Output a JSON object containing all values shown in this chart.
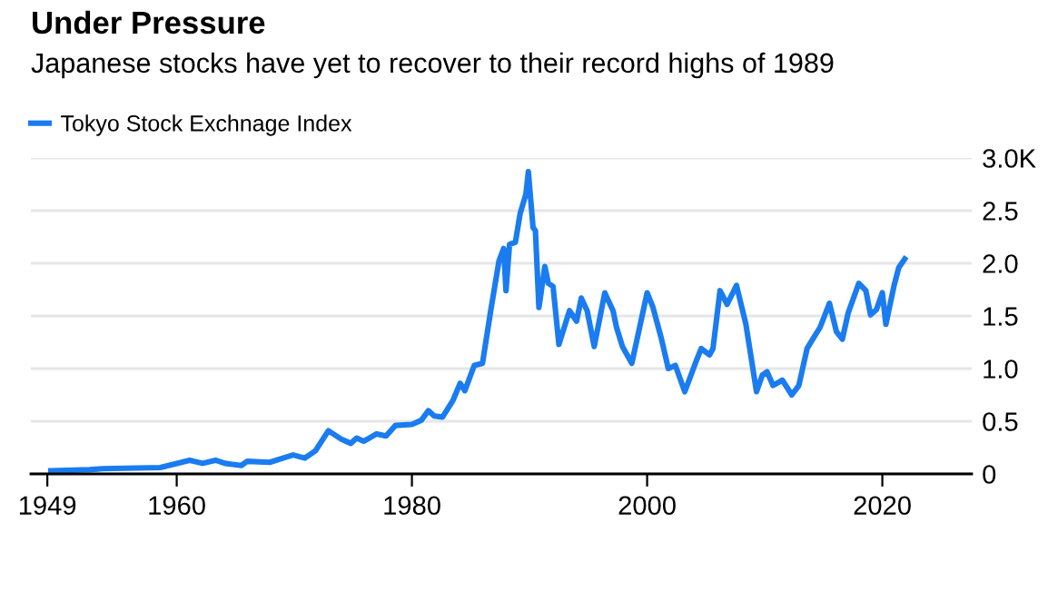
{
  "chart_data": {
    "type": "line",
    "title": "Under Pressure",
    "subtitle": "Japanese stocks have yet to recover to their record highs of 1989",
    "x": [
      1949.3,
      1952.6,
      1953.7,
      1958.6,
      1961.1,
      1962.2,
      1963.3,
      1964.1,
      1965.5,
      1966.0,
      1967.9,
      1969.9,
      1970.9,
      1971.8,
      1972.9,
      1974.0,
      1974.8,
      1975.3,
      1975.9,
      1977.0,
      1977.8,
      1978.6,
      1980.0,
      1980.8,
      1981.4,
      1981.9,
      1982.6,
      1983.5,
      1984.1,
      1984.5,
      1985.3,
      1986.0,
      1986.7,
      1987.4,
      1987.8,
      1988.0,
      1988.3,
      1988.8,
      1989.2,
      1989.7,
      1989.9,
      1990.3,
      1990.5,
      1990.8,
      1991.3,
      1991.6,
      1992.0,
      1992.5,
      1993.4,
      1994.0,
      1994.4,
      1994.9,
      1995.5,
      1996.4,
      1997.1,
      1997.4,
      1997.9,
      1998.7,
      2000.0,
      2000.5,
      2001.2,
      2001.8,
      2002.4,
      2003.2,
      2004.1,
      2004.6,
      2005.3,
      2005.6,
      2006.2,
      2006.8,
      2007.6,
      2008.4,
      2009.3,
      2009.8,
      2010.2,
      2010.7,
      2011.5,
      2012.3,
      2012.9,
      2013.6,
      2014.2,
      2014.7,
      2015.5,
      2016.1,
      2016.6,
      2017.1,
      2018.0,
      2018.6,
      2019.0,
      2019.5,
      2020.0,
      2020.3,
      2021.0,
      2021.4,
      2021.9
    ],
    "series": [
      {
        "name": "Tokyo Stock Exchnage Index",
        "color": "#1a7cf0",
        "values": [
          0.03,
          0.04,
          0.05,
          0.06,
          0.13,
          0.1,
          0.13,
          0.1,
          0.08,
          0.12,
          0.11,
          0.18,
          0.15,
          0.22,
          0.41,
          0.33,
          0.29,
          0.34,
          0.31,
          0.38,
          0.36,
          0.46,
          0.47,
          0.51,
          0.6,
          0.55,
          0.54,
          0.7,
          0.86,
          0.79,
          1.03,
          1.05,
          1.55,
          2.02,
          2.14,
          1.74,
          2.18,
          2.2,
          2.47,
          2.66,
          2.87,
          2.34,
          2.31,
          1.58,
          1.97,
          1.81,
          1.78,
          1.23,
          1.55,
          1.45,
          1.67,
          1.55,
          1.21,
          1.72,
          1.55,
          1.39,
          1.21,
          1.05,
          1.72,
          1.58,
          1.29,
          1.0,
          1.03,
          0.78,
          1.05,
          1.19,
          1.13,
          1.19,
          1.74,
          1.61,
          1.79,
          1.42,
          0.78,
          0.94,
          0.97,
          0.84,
          0.89,
          0.75,
          0.84,
          1.19,
          1.3,
          1.39,
          1.62,
          1.35,
          1.28,
          1.53,
          1.81,
          1.74,
          1.51,
          1.56,
          1.72,
          1.42,
          1.79,
          1.96,
          2.04
        ]
      }
    ],
    "xlim": [
      1947.6,
      2027.6
    ],
    "xticks": [
      1949,
      1960,
      1980,
      2000,
      2020
    ],
    "ylim": [
      0,
      3.0
    ],
    "yticks": [
      0,
      0.5,
      {
        "value": 1.0,
        "label": "1.0"
      },
      1.5,
      {
        "value": 2.0,
        "label": "2.0"
      },
      2.5,
      {
        "value": 3.0,
        "label": "3.0K"
      }
    ],
    "grid": "y",
    "legend": "top left",
    "marker": "none",
    "line_style": "solid"
  }
}
